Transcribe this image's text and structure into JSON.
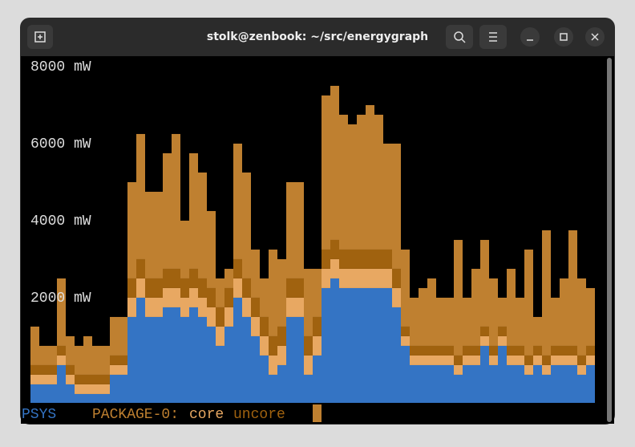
{
  "window": {
    "title": "stolk@zenbook: ~/src/energygraph"
  },
  "chart_data": {
    "type": "bar",
    "stacked": true,
    "ylim": [
      0,
      9000
    ],
    "yticks": [
      {
        "value": 2000,
        "label": "2000 mW"
      },
      {
        "value": 4000,
        "label": "4000 mW"
      },
      {
        "value": 6000,
        "label": "6000 mW"
      },
      {
        "value": 8000,
        "label": "8000 mW"
      }
    ],
    "series": [
      {
        "name": "PSYS",
        "color": "#3474c4",
        "values": [
          480,
          480,
          480,
          980,
          480,
          230,
          230,
          230,
          230,
          730,
          730,
          2230,
          2730,
          2230,
          2230,
          2480,
          2480,
          2230,
          2480,
          2230,
          1980,
          1480,
          1980,
          2730,
          2230,
          1730,
          1230,
          730,
          980,
          2230,
          2230,
          730,
          1230,
          2980,
          3230,
          2980,
          2980,
          2980,
          2980,
          2980,
          2980,
          2480,
          1480,
          980,
          980,
          980,
          980,
          980,
          730,
          980,
          980,
          1480,
          980,
          1480,
          980,
          980,
          730,
          980,
          730,
          980,
          980,
          980,
          730,
          980
        ]
      },
      {
        "name": "PACKAGE-0:",
        "color": "#bf8030",
        "values": [
          1000,
          500,
          500,
          1750,
          750,
          750,
          1000,
          750,
          750,
          1000,
          1000,
          2500,
          3250,
          2250,
          2250,
          3000,
          3500,
          1500,
          3000,
          2750,
          2000,
          750,
          500,
          3000,
          2750,
          1250,
          1000,
          2250,
          1750,
          2500,
          2500,
          1750,
          1250,
          4000,
          4000,
          3500,
          3250,
          3500,
          3750,
          3500,
          2750,
          3250,
          2000,
          1250,
          1500,
          1750,
          1250,
          1250,
          3000,
          1250,
          2000,
          2250,
          1750,
          750,
          2000,
          1250,
          2750,
          750,
          3250,
          1250,
          1750,
          3000,
          2000,
          1500
        ]
      },
      {
        "name": "core",
        "color": "#e8a862",
        "values": [
          250,
          250,
          250,
          250,
          250,
          250,
          250,
          250,
          250,
          250,
          250,
          500,
          500,
          500,
          500,
          500,
          500,
          500,
          500,
          500,
          500,
          500,
          500,
          500,
          500,
          500,
          500,
          500,
          500,
          500,
          500,
          500,
          500,
          500,
          500,
          500,
          500,
          500,
          500,
          500,
          500,
          500,
          250,
          250,
          250,
          250,
          250,
          250,
          250,
          250,
          250,
          250,
          250,
          250,
          250,
          250,
          250,
          250,
          250,
          250,
          250,
          250,
          250,
          250
        ]
      },
      {
        "name": "uncore",
        "color": "#a0620f",
        "values": [
          250,
          250,
          250,
          250,
          250,
          250,
          250,
          250,
          250,
          250,
          250,
          500,
          500,
          500,
          500,
          500,
          500,
          500,
          500,
          500,
          500,
          500,
          500,
          500,
          500,
          500,
          500,
          500,
          500,
          500,
          500,
          500,
          500,
          500,
          500,
          500,
          500,
          500,
          500,
          500,
          500,
          500,
          250,
          250,
          250,
          250,
          250,
          250,
          250,
          250,
          250,
          250,
          250,
          250,
          250,
          250,
          250,
          250,
          250,
          250,
          250,
          250,
          250,
          250
        ]
      }
    ]
  }
}
